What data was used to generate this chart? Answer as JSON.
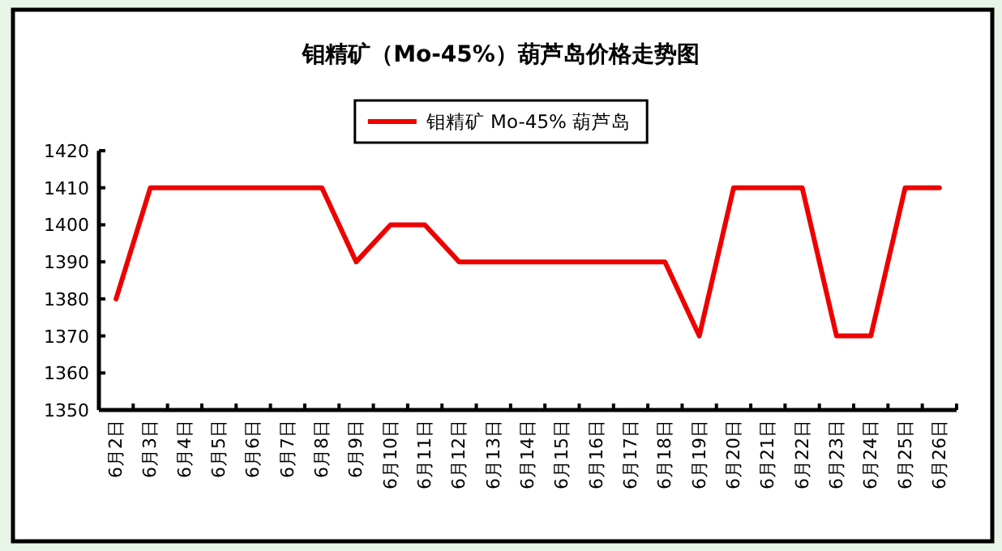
{
  "chart_data": {
    "type": "line",
    "title": "钼精矿（Mo-45%）葫芦岛价格走势图",
    "categories": [
      "6月2日",
      "6月3日",
      "6月4日",
      "6月5日",
      "6月6日",
      "6月7日",
      "6月8日",
      "6月9日",
      "6月10日",
      "6月11日",
      "6月12日",
      "6月13日",
      "6月14日",
      "6月15日",
      "6月16日",
      "6月17日",
      "6月18日",
      "6月19日",
      "6月20日",
      "6月21日",
      "6月22日",
      "6月23日",
      "6月24日",
      "6月25日",
      "6月26日"
    ],
    "series": [
      {
        "name": "钼精矿 Mo-45% 葫芦岛",
        "color": "#ee0000",
        "values": [
          1380,
          1410,
          1410,
          1410,
          1410,
          1410,
          1410,
          1390,
          1400,
          1400,
          1390,
          1390,
          1390,
          1390,
          1390,
          1390,
          1390,
          1370,
          1410,
          1410,
          1410,
          1370,
          1370,
          1410,
          1410
        ]
      }
    ],
    "ylim": [
      1350,
      1420
    ],
    "yticks": [
      1350,
      1360,
      1370,
      1380,
      1390,
      1400,
      1410,
      1420
    ],
    "grid": false,
    "legend": "top",
    "marker": "none",
    "line_style": "solid"
  }
}
